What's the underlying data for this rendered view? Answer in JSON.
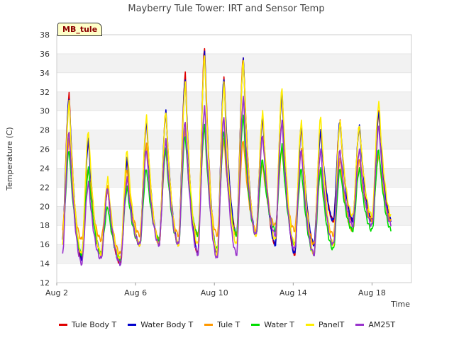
{
  "badge": "MB_tule",
  "chart_data": {
    "type": "line",
    "title": "Mayberry Tule Tower: IRT and Sensor Temp",
    "xlabel": "Time",
    "ylabel": "Temperature (C)",
    "ylim": [
      12,
      38
    ],
    "yticks": [
      12,
      14,
      16,
      18,
      20,
      22,
      24,
      26,
      28,
      30,
      32,
      34,
      36,
      38
    ],
    "xlim": [
      2,
      20
    ],
    "xtick_values": [
      2,
      6,
      10,
      14,
      18
    ],
    "xticks": [
      "Aug 2",
      "Aug 6",
      "Aug 10",
      "Aug 14",
      "Aug 18"
    ],
    "grid": "horizontal bands",
    "legend_position": "bottom",
    "series": [
      {
        "name": "Tule Body T",
        "color": "#e00000",
        "min": [
          16.5,
          14.5,
          15,
          14,
          16,
          16,
          16,
          15,
          15,
          17,
          17,
          16,
          15,
          16,
          18.5
        ],
        "max": [
          31.8,
          27,
          22,
          25,
          29,
          30,
          34,
          36.8,
          33.5,
          35.8,
          29.5,
          32,
          28.5,
          28,
          29,
          28.5,
          30
        ]
      },
      {
        "name": "Water Body T",
        "color": "#0000cc",
        "min": [
          16.5,
          14.5,
          15,
          14,
          16,
          16,
          16,
          15,
          15,
          17,
          17,
          16,
          15,
          16,
          18.5
        ],
        "max": [
          31.5,
          27,
          22,
          25,
          29,
          30,
          33.5,
          36.2,
          33.5,
          35.5,
          29.5,
          32,
          28.5,
          28,
          29,
          28.5,
          30
        ]
      },
      {
        "name": "Tule T",
        "color": "#ff9900",
        "min": [
          17.5,
          16.5,
          16.5,
          15,
          17,
          16.5,
          17,
          17,
          17,
          17,
          17.5,
          18,
          17.5,
          16,
          17,
          17.5,
          18.5
        ],
        "max": [
          27,
          24,
          22,
          24,
          26.5,
          26,
          28,
          28.5,
          27,
          27,
          24.5,
          26,
          26,
          24,
          25,
          25,
          25.5
        ]
      },
      {
        "name": "Water T",
        "color": "#00dd00",
        "min": [
          16,
          15,
          15,
          14.5,
          16,
          16.5,
          16,
          17,
          15.5,
          17,
          17,
          17.5,
          16,
          15,
          15.5,
          17.5
        ],
        "max": [
          26,
          24,
          20,
          22,
          24,
          26,
          27.5,
          28.5,
          28,
          29.5,
          25,
          26.5,
          24,
          24,
          24,
          24,
          26
        ]
      },
      {
        "name": "PanelT",
        "color": "#ffee00",
        "min": [
          16,
          15,
          15,
          14.5,
          16,
          16,
          16,
          16,
          15,
          16,
          17,
          16.5,
          16,
          15,
          16,
          19
        ],
        "max": [
          31,
          28,
          23,
          26,
          29.5,
          30,
          33,
          36,
          33,
          35.5,
          30,
          32.5,
          29,
          29.5,
          29,
          28.5,
          31
        ]
      },
      {
        "name": "AM25T",
        "color": "#9933cc",
        "min": [
          15,
          14,
          14.5,
          14,
          16,
          16,
          16,
          15,
          14.5,
          15,
          17,
          17,
          15.5,
          15,
          16,
          18
        ],
        "max": [
          28,
          22.5,
          22,
          23,
          26,
          27,
          29,
          30.5,
          29.5,
          31.5,
          27.5,
          29,
          26,
          26,
          26,
          26,
          28.5
        ]
      }
    ]
  }
}
